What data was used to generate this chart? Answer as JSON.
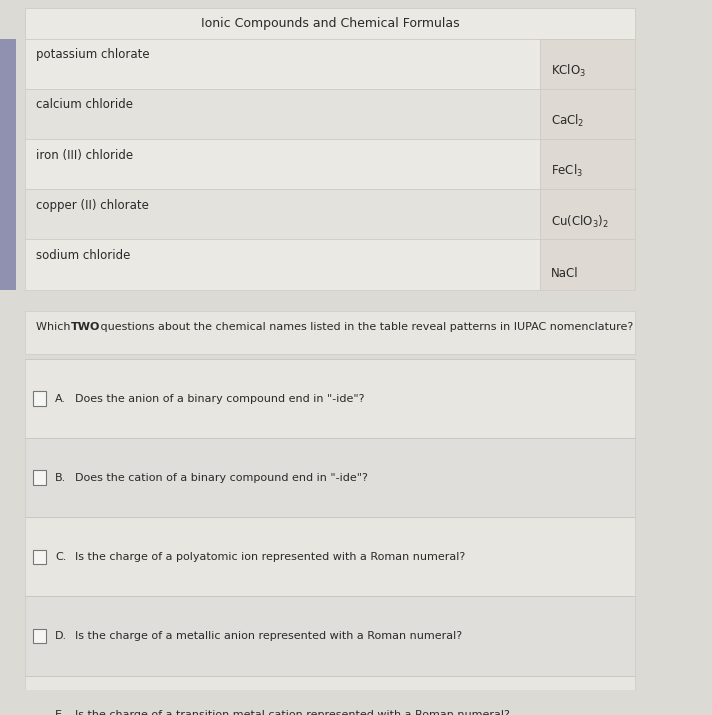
{
  "title": "Ionic Compounds and Chemical Formulas",
  "table_rows": [
    {
      "name": "potassium chlorate",
      "formula": "KClO$_3$"
    },
    {
      "name": "calcium chloride",
      "formula": "CaCl$_2$"
    },
    {
      "name": "iron (III) chloride",
      "formula": "FeCl$_3$"
    },
    {
      "name": "copper (II) chlorate",
      "formula": "Cu(ClO$_3$)$_2$"
    },
    {
      "name": "sodium chloride",
      "formula": "NaCl"
    }
  ],
  "options": [
    {
      "label": "A",
      "text": "Does the anion of a binary compound end in \"-ide\"?"
    },
    {
      "label": "B",
      "text": "Does the cation of a binary compound end in \"-ide\"?"
    },
    {
      "label": "C",
      "text": "Is the charge of a polyatomic ion represented with a Roman numeral?"
    },
    {
      "label": "D",
      "text": "Is the charge of a metallic anion represented with a Roman numeral?"
    },
    {
      "label": "E",
      "text": "Is the charge of a transition metal cation represented with a Roman numeral?"
    }
  ],
  "bg_color": "#dcdad5",
  "row_color_odd": "#ebe9e4",
  "row_color_even": "#e4e2dc",
  "formula_col_color": "#dedad3",
  "question_bg": "#e8e6e0",
  "option_bg_odd": "#e8e6e0",
  "option_bg_even": "#e0deda",
  "left_bar_color": "#9090b0",
  "border_color": "#c8c6c0",
  "text_color": "#2a2a2a",
  "title_color": "#2a2a2a",
  "checkbox_fill": "#f5f5f2",
  "checkbox_edge": "#777777"
}
